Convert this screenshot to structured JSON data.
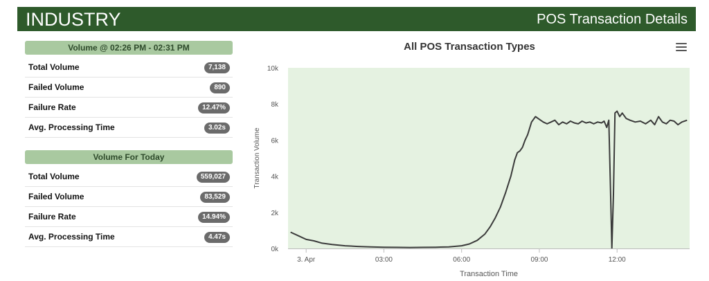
{
  "header": {
    "title": "INDUSTRY",
    "subtitle": "POS Transaction Details"
  },
  "interval_panel": {
    "heading": "Volume @ 02:26 PM - 02:31 PM",
    "rows": [
      {
        "label": "Total Volume",
        "value": "7,138"
      },
      {
        "label": "Failed Volume",
        "value": "890"
      },
      {
        "label": "Failure Rate",
        "value": "12.47%"
      },
      {
        "label": "Avg. Processing Time",
        "value": "3.02s"
      }
    ]
  },
  "today_panel": {
    "heading": "Volume For Today",
    "rows": [
      {
        "label": "Total Volume",
        "value": "559,027"
      },
      {
        "label": "Failed Volume",
        "value": "83,529"
      },
      {
        "label": "Failure Rate",
        "value": "14.94%"
      },
      {
        "label": "Avg. Processing Time",
        "value": "4.47s"
      }
    ]
  },
  "chart_menu": {
    "icon": "hamburger-menu-icon"
  },
  "chart_data": {
    "type": "area",
    "title": "All POS Transaction Types",
    "xlabel": "Transaction Time",
    "ylabel": "Transaction Volume",
    "x_unit": "hours",
    "x_ticks": [
      {
        "x": 0,
        "label": "3. Apr"
      },
      {
        "x": 3,
        "label": "03:00"
      },
      {
        "x": 6,
        "label": "06:00"
      },
      {
        "x": 9,
        "label": "09:00"
      },
      {
        "x": 12,
        "label": "12:00"
      }
    ],
    "y_ticks": [
      {
        "y": 0,
        "label": "0k"
      },
      {
        "y": 2000,
        "label": "2k"
      },
      {
        "y": 4000,
        "label": "4k"
      },
      {
        "y": 6000,
        "label": "6k"
      },
      {
        "y": 8000,
        "label": "8k"
      },
      {
        "y": 10000,
        "label": "10k"
      }
    ],
    "xlim": [
      -0.7,
      14.8
    ],
    "ylim": [
      0,
      10000
    ],
    "grid": false,
    "colors": {
      "line": "#3a3a3a",
      "area": "#e5f2e1"
    },
    "series": [
      {
        "points": [
          [
            -0.6,
            900
          ],
          [
            -0.3,
            700
          ],
          [
            0,
            500
          ],
          [
            0.3,
            420
          ],
          [
            0.6,
            300
          ],
          [
            1,
            220
          ],
          [
            1.5,
            150
          ],
          [
            2,
            110
          ],
          [
            2.5,
            90
          ],
          [
            3,
            70
          ],
          [
            3.5,
            60
          ],
          [
            4,
            55
          ],
          [
            4.5,
            60
          ],
          [
            5,
            70
          ],
          [
            5.5,
            90
          ],
          [
            6,
            150
          ],
          [
            6.3,
            250
          ],
          [
            6.6,
            450
          ],
          [
            6.9,
            800
          ],
          [
            7.1,
            1200
          ],
          [
            7.3,
            1700
          ],
          [
            7.5,
            2300
          ],
          [
            7.7,
            3100
          ],
          [
            7.9,
            4000
          ],
          [
            8.05,
            4900
          ],
          [
            8.15,
            5300
          ],
          [
            8.25,
            5400
          ],
          [
            8.35,
            5600
          ],
          [
            8.45,
            6000
          ],
          [
            8.55,
            6300
          ],
          [
            8.7,
            7000
          ],
          [
            8.85,
            7300
          ],
          [
            9,
            7150
          ],
          [
            9.15,
            7000
          ],
          [
            9.3,
            6900
          ],
          [
            9.45,
            7000
          ],
          [
            9.6,
            7100
          ],
          [
            9.75,
            6850
          ],
          [
            9.9,
            7000
          ],
          [
            10.05,
            6900
          ],
          [
            10.2,
            7050
          ],
          [
            10.35,
            6950
          ],
          [
            10.5,
            6900
          ],
          [
            10.65,
            7050
          ],
          [
            10.8,
            6950
          ],
          [
            10.95,
            7000
          ],
          [
            11.1,
            6900
          ],
          [
            11.25,
            7000
          ],
          [
            11.4,
            6950
          ],
          [
            11.5,
            7050
          ],
          [
            11.6,
            6700
          ],
          [
            11.68,
            7100
          ],
          [
            11.75,
            3000
          ],
          [
            11.8,
            0
          ],
          [
            11.86,
            3000
          ],
          [
            11.92,
            7500
          ],
          [
            12,
            7600
          ],
          [
            12.1,
            7300
          ],
          [
            12.2,
            7500
          ],
          [
            12.35,
            7200
          ],
          [
            12.5,
            7100
          ],
          [
            12.7,
            7000
          ],
          [
            12.9,
            7050
          ],
          [
            13.1,
            6900
          ],
          [
            13.3,
            7100
          ],
          [
            13.45,
            6850
          ],
          [
            13.6,
            7300
          ],
          [
            13.75,
            7000
          ],
          [
            13.9,
            6900
          ],
          [
            14.05,
            7100
          ],
          [
            14.2,
            7050
          ],
          [
            14.35,
            6850
          ],
          [
            14.5,
            7000
          ],
          [
            14.7,
            7100
          ]
        ]
      }
    ]
  }
}
